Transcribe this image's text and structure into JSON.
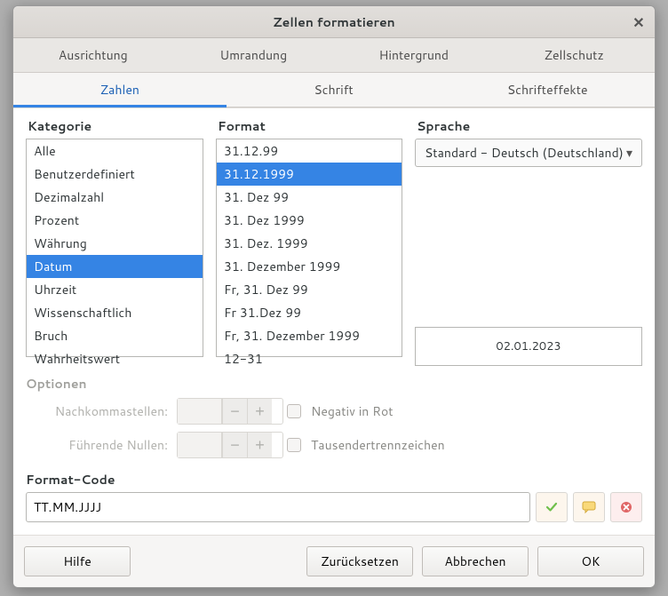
{
  "window": {
    "title": "Zellen formatieren"
  },
  "tabs_row1": [
    {
      "label": "Ausrichtung"
    },
    {
      "label": "Umrandung"
    },
    {
      "label": "Hintergrund"
    },
    {
      "label": "Zellschutz"
    }
  ],
  "tabs_row2": [
    {
      "label": "Zahlen",
      "active": true
    },
    {
      "label": "Schrift"
    },
    {
      "label": "Schrifteffekte"
    }
  ],
  "labels": {
    "category": "Kategorie",
    "format": "Format",
    "language": "Sprache",
    "options": "Optionen",
    "decimal_places": "Nachkommastellen:",
    "leading_zeros": "Führende Nullen:",
    "negative_red": "Negativ in Rot",
    "thousands_sep": "Tausendertrennzeichen",
    "format_code": "Format-Code"
  },
  "categories": [
    "Alle",
    "Benutzerdefiniert",
    "Dezimalzahl",
    "Prozent",
    "Währung",
    "Datum",
    "Uhrzeit",
    "Wissenschaftlich",
    "Bruch",
    "Wahrheitswert"
  ],
  "category_selected_index": 5,
  "formats": [
    "31.12.99",
    "31.12.1999",
    "31. Dez 99",
    "31. Dez 1999",
    "31. Dez. 1999",
    "31. Dezember 1999",
    "Fr, 31. Dez 99",
    "Fr 31.Dez 99",
    "Fr, 31. Dezember 1999",
    "12-31"
  ],
  "format_selected_index": 1,
  "language": {
    "selected": "Standard - Deutsch (Deutschland)"
  },
  "preview": "02.01.2023",
  "format_code": "TT.MM.JJJJ",
  "buttons": {
    "help": "Hilfe",
    "reset": "Zurücksetzen",
    "cancel": "Abbrechen",
    "ok": "OK"
  },
  "colors": {
    "selection": "#3584e4",
    "accent_underline": "#3584e4"
  }
}
